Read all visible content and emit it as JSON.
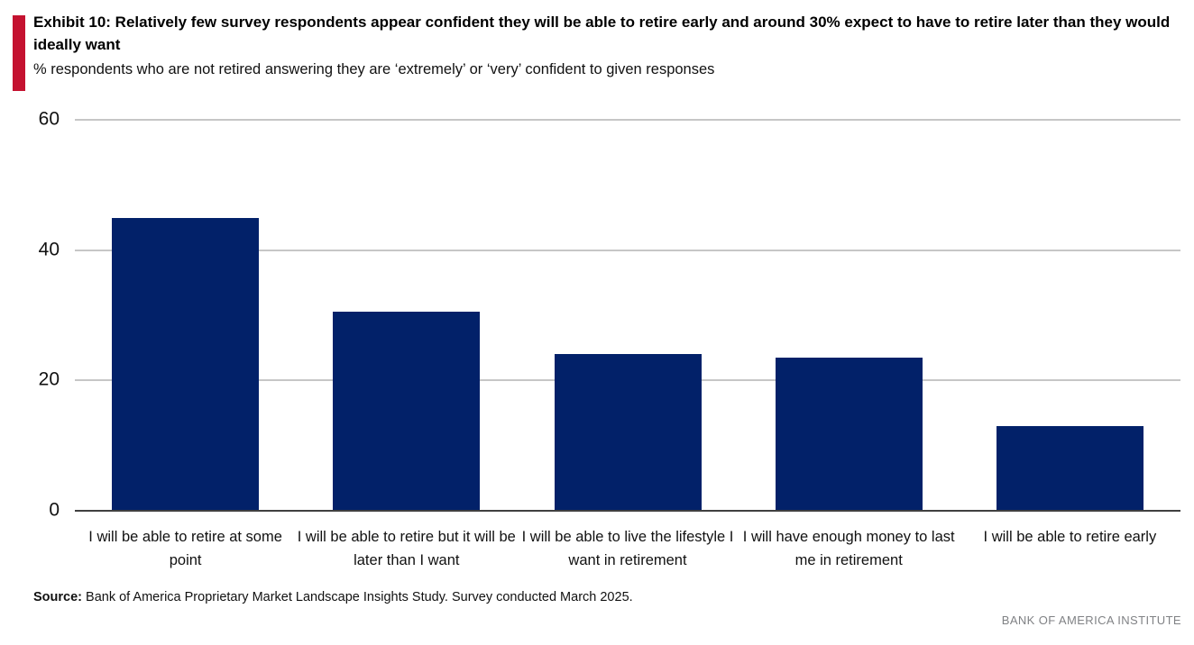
{
  "accent_color": "#C41230",
  "header": {
    "exhibit_title": "Exhibit 10: Relatively few survey respondents appear confident they will be able to retire early and around 30% expect to have to retire later than they would ideally want",
    "subtitle": "% respondents who are not retired answering they are ‘extremely’ or ‘very’ confident to given responses"
  },
  "chart_data": {
    "type": "bar",
    "title": "Exhibit 10: Relatively few survey respondents appear confident they will be able to retire early and around 30% expect to have to retire later than they would ideally want",
    "subtitle": "% respondents who are not retired answering they are ‘extremely’ or ‘very’ confident to given responses",
    "categories": [
      "I will be able to retire at some point",
      "I will be able to retire but it will be later than I want",
      "I will be able to live the lifestyle I want in retirement",
      "I will have enough money to last me in retirement",
      "I will be able to retire early"
    ],
    "values": [
      45,
      30.5,
      24,
      23.5,
      13
    ],
    "xlabel": "",
    "ylabel": "",
    "ylim": [
      0,
      60
    ],
    "yticks": [
      0,
      20,
      40,
      60
    ],
    "grid": true,
    "legend": false,
    "bar_color": "#022169",
    "gridline_color": "#c6c6c6",
    "axis_line_color": "#404040"
  },
  "footer": {
    "source_label": "Source:",
    "source_text": " Bank of America Proprietary Market Landscape Insights Study. Survey conducted March 2025.",
    "institute": "BANK OF AMERICA INSTITUTE"
  }
}
